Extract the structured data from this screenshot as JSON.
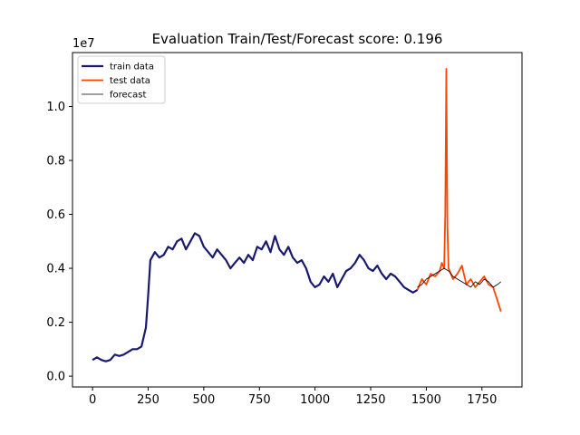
{
  "chart_data": {
    "type": "line",
    "title": "Evaluation Train/Test/Forecast score: 0.196",
    "xlabel": "",
    "ylabel": "",
    "y_offset_label": "1e7",
    "xlim": [
      -90,
      1930
    ],
    "ylim": [
      -0.04,
      1.2
    ],
    "y_scale": 10000000,
    "x_ticks": [
      0,
      250,
      500,
      750,
      1000,
      1250,
      1500,
      1750
    ],
    "x_tick_labels": [
      "0",
      "250",
      "500",
      "750",
      "1000",
      "1250",
      "1500",
      "1750"
    ],
    "y_ticks": [
      0.0,
      0.2,
      0.4,
      0.6,
      0.8,
      1.0
    ],
    "y_tick_labels": [
      "0.0",
      "0.2",
      "0.4",
      "0.6",
      "0.8",
      "1.0"
    ],
    "grid": false,
    "legend_position": "top-left",
    "series": [
      {
        "name": "train data",
        "color": "#191970",
        "x": [
          0,
          20,
          40,
          60,
          80,
          100,
          120,
          140,
          160,
          180,
          200,
          220,
          240,
          250,
          260,
          280,
          300,
          320,
          340,
          360,
          380,
          400,
          420,
          440,
          460,
          480,
          500,
          520,
          540,
          560,
          580,
          600,
          620,
          640,
          660,
          680,
          700,
          720,
          740,
          760,
          780,
          800,
          820,
          840,
          860,
          880,
          900,
          920,
          940,
          960,
          980,
          1000,
          1020,
          1040,
          1060,
          1080,
          1100,
          1120,
          1140,
          1160,
          1180,
          1200,
          1220,
          1240,
          1260,
          1280,
          1300,
          1320,
          1340,
          1360,
          1380,
          1400,
          1420,
          1440,
          1460
        ],
        "y": [
          0.06,
          0.07,
          0.06,
          0.055,
          0.06,
          0.08,
          0.075,
          0.08,
          0.09,
          0.1,
          0.1,
          0.11,
          0.18,
          0.3,
          0.43,
          0.46,
          0.44,
          0.45,
          0.48,
          0.47,
          0.5,
          0.51,
          0.47,
          0.5,
          0.53,
          0.52,
          0.48,
          0.46,
          0.44,
          0.47,
          0.45,
          0.43,
          0.4,
          0.42,
          0.44,
          0.42,
          0.45,
          0.43,
          0.48,
          0.47,
          0.5,
          0.46,
          0.52,
          0.47,
          0.45,
          0.48,
          0.44,
          0.42,
          0.43,
          0.4,
          0.35,
          0.33,
          0.34,
          0.37,
          0.35,
          0.38,
          0.33,
          0.36,
          0.39,
          0.4,
          0.42,
          0.45,
          0.43,
          0.4,
          0.39,
          0.41,
          0.38,
          0.36,
          0.38,
          0.37,
          0.35,
          0.33,
          0.32,
          0.31,
          0.32
        ]
      },
      {
        "name": "test data",
        "color": "#ff4500",
        "x": [
          1460,
          1480,
          1500,
          1520,
          1540,
          1560,
          1570,
          1580,
          1585,
          1590,
          1595,
          1600,
          1620,
          1640,
          1660,
          1680,
          1700,
          1720,
          1740,
          1760,
          1780,
          1800,
          1820,
          1835
        ],
        "y": [
          0.32,
          0.36,
          0.34,
          0.38,
          0.37,
          0.39,
          0.42,
          0.4,
          0.6,
          1.14,
          0.55,
          0.4,
          0.36,
          0.38,
          0.41,
          0.34,
          0.36,
          0.33,
          0.35,
          0.37,
          0.34,
          0.33,
          0.28,
          0.24
        ]
      },
      {
        "name": "forecast",
        "color": "#000000",
        "x": [
          1460,
          1480,
          1500,
          1520,
          1540,
          1560,
          1580,
          1600,
          1620,
          1640,
          1660,
          1680,
          1700,
          1720,
          1740,
          1760,
          1780,
          1800,
          1820,
          1835
        ],
        "y": [
          0.33,
          0.34,
          0.36,
          0.37,
          0.38,
          0.39,
          0.4,
          0.39,
          0.37,
          0.36,
          0.35,
          0.34,
          0.33,
          0.35,
          0.34,
          0.36,
          0.35,
          0.33,
          0.34,
          0.35
        ]
      }
    ]
  }
}
